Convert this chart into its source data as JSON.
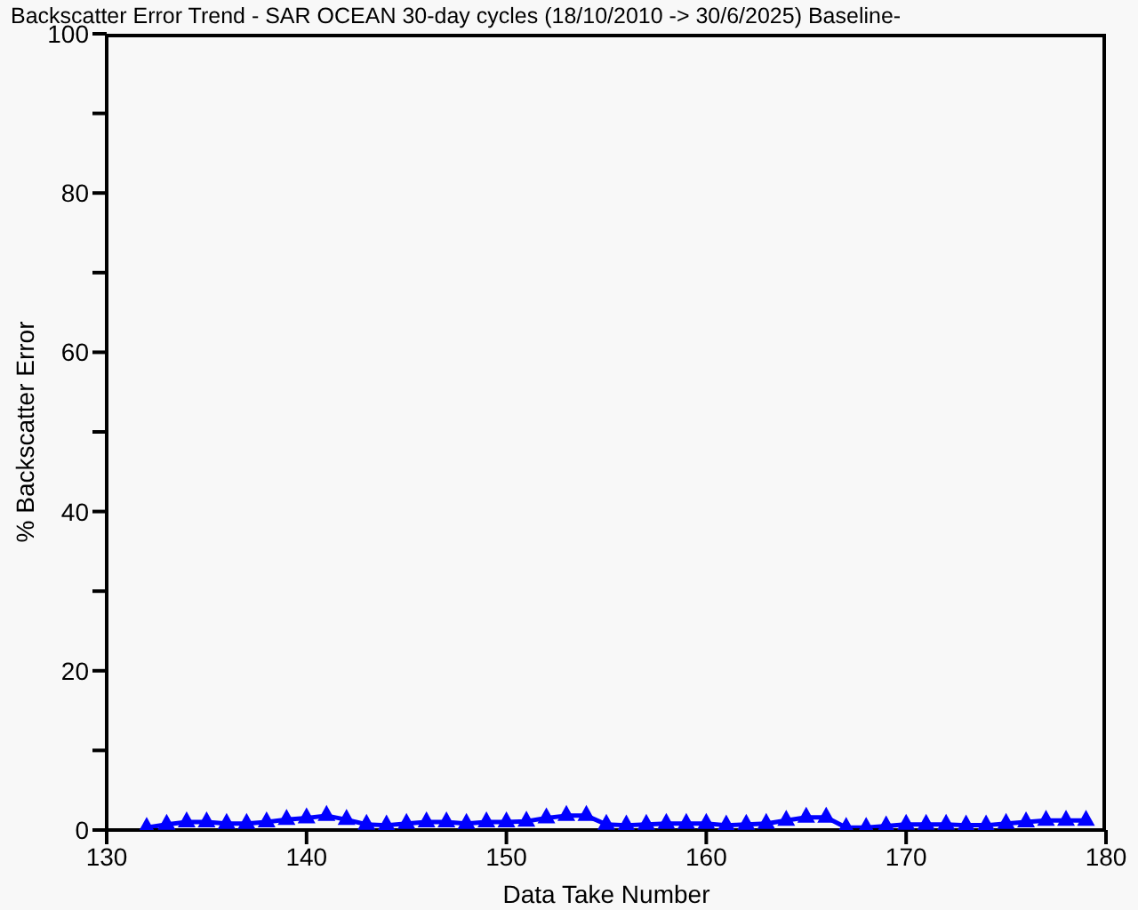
{
  "chart_data": {
    "type": "line",
    "title": "Backscatter Error Trend - SAR OCEAN 30-day cycles (18/10/2010 -> 30/6/2025) Baseline-",
    "xlabel": "Data Take Number",
    "ylabel": "% Backscatter Error",
    "x": [
      132,
      133,
      134,
      135,
      136,
      137,
      138,
      139,
      140,
      141,
      142,
      143,
      144,
      145,
      146,
      147,
      148,
      149,
      150,
      151,
      152,
      153,
      154,
      155,
      156,
      157,
      158,
      159,
      160,
      161,
      162,
      163,
      164,
      165,
      166,
      167,
      168,
      169,
      170,
      171,
      172,
      173,
      174,
      175,
      176,
      177,
      178,
      179
    ],
    "series": [
      {
        "color": "#0000ff",
        "values": [
          0.3,
          0.7,
          1.0,
          1.0,
          0.8,
          0.8,
          1.0,
          1.3,
          1.5,
          1.8,
          1.3,
          0.7,
          0.6,
          0.8,
          1.0,
          1.0,
          0.8,
          1.0,
          1.0,
          1.1,
          1.5,
          1.8,
          1.8,
          0.7,
          0.6,
          0.7,
          0.8,
          0.8,
          0.8,
          0.6,
          0.7,
          0.8,
          1.2,
          1.6,
          1.6,
          0.3,
          0.3,
          0.5,
          0.7,
          0.7,
          0.7,
          0.6,
          0.6,
          0.8,
          1.0,
          1.2,
          1.2,
          1.2
        ]
      }
    ],
    "xlim": [
      130,
      180
    ],
    "xticks": [
      130,
      140,
      150,
      160,
      170,
      180
    ],
    "ylim": [
      0,
      100
    ],
    "yticks": [
      0,
      {
        "value": 10,
        "label": null
      },
      20,
      {
        "value": 30,
        "label": null
      },
      40,
      {
        "value": 50,
        "label": null
      },
      60,
      {
        "value": 70,
        "label": null
      },
      80,
      {
        "value": 90,
        "label": null
      },
      100
    ],
    "marker": "triangle",
    "line_style": "solid",
    "grid": false,
    "legend": false
  }
}
